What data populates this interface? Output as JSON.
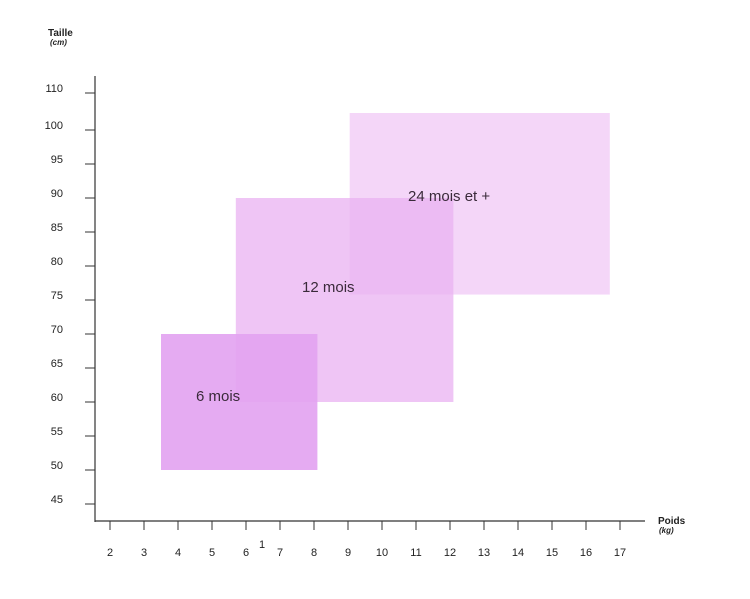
{
  "chart_data": {
    "type": "area",
    "ylabel": "Taille",
    "ylabel_unit": "(cm)",
    "xlabel": "Poids",
    "xlabel_unit": "(kg)",
    "y_ticks": [
      45,
      50,
      55,
      60,
      65,
      70,
      75,
      80,
      85,
      90,
      95,
      100,
      110
    ],
    "x_ticks": [
      2,
      3,
      4,
      5,
      6,
      7,
      8,
      9,
      10,
      11,
      12,
      13,
      14,
      15,
      16,
      17
    ],
    "stray_x_mark": "1",
    "grid": false,
    "zones": [
      {
        "name": "24 mois et +",
        "x_range": [
          9.05,
          16.7
        ],
        "y_range": [
          75.8,
          102.5
        ],
        "color": "#f0c8f6"
      },
      {
        "name": "12 mois",
        "x_range": [
          5.7,
          12.1
        ],
        "y_range": [
          60,
          90
        ],
        "color": "#e9b2f2"
      },
      {
        "name": "6 mois",
        "x_range": [
          3.5,
          8.1
        ],
        "y_range": [
          50,
          70
        ],
        "color": "#e2a2f1"
      }
    ]
  }
}
